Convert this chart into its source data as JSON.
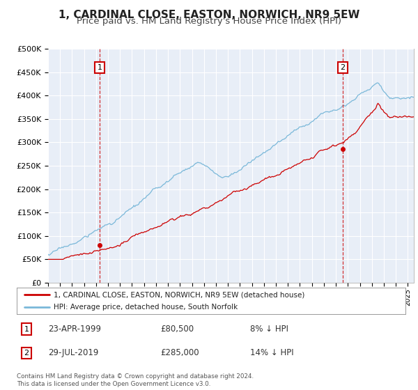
{
  "title": "1, CARDINAL CLOSE, EASTON, NORWICH, NR9 5EW",
  "subtitle": "Price paid vs. HM Land Registry's House Price Index (HPI)",
  "legend_line1": "1, CARDINAL CLOSE, EASTON, NORWICH, NR9 5EW (detached house)",
  "legend_line2": "HPI: Average price, detached house, South Norfolk",
  "annotation1_date": "23-APR-1999",
  "annotation1_price": "£80,500",
  "annotation1_hpi": "8% ↓ HPI",
  "annotation2_date": "29-JUL-2019",
  "annotation2_price": "£285,000",
  "annotation2_hpi": "14% ↓ HPI",
  "footer": "Contains HM Land Registry data © Crown copyright and database right 2024.\nThis data is licensed under the Open Government Licence v3.0.",
  "sale1_x": 1999.31,
  "sale1_y": 80500,
  "sale2_x": 2019.58,
  "sale2_y": 285000,
  "hpi_color": "#7ab8d9",
  "sale_color": "#cc0000",
  "vline_color": "#cc0000",
  "background_color": "#e8eef7",
  "plot_bg": "#ffffff",
  "ylim": [
    0,
    500000
  ],
  "xlim_start": 1995.0,
  "xlim_end": 2025.5,
  "grid_color": "#ffffff",
  "title_fontsize": 11,
  "subtitle_fontsize": 9.5,
  "tick_fontsize": 7,
  "ytick_fontsize": 8
}
